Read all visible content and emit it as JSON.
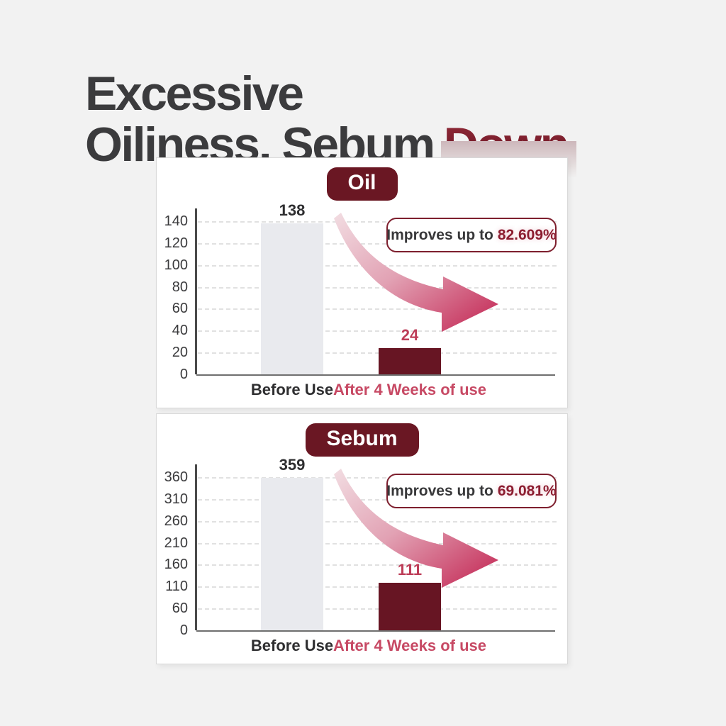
{
  "page": {
    "background": "#f2f2f2"
  },
  "title": {
    "line1": "Excessive",
    "line2_prefix": "Oiliness, Sebum",
    "line2_highlight": "Down"
  },
  "colors": {
    "page_bg": "#f2f2f2",
    "title_text": "#3b3b3d",
    "down_text": "#7a1f2b",
    "badge_bg": "#6a1723",
    "badge_text": "#ffffff",
    "bar_before": "#e9eaee",
    "bar_after": "#671523",
    "value_label_before": "#2e2e30",
    "value_label_after": "#bd3d58",
    "category_before": "#2e2e30",
    "category_after": "#c74964",
    "annotation_border": "#7e1f2e",
    "annotation_prefix_text": "#38383a",
    "annotation_value_text": "#8c1d30",
    "arrow_start": "#f2dde2",
    "arrow_mid": "#e2a2b4",
    "arrow_end": "#c22250",
    "gridline": "#e1e1e1"
  },
  "chart_data": [
    {
      "type": "bar",
      "title": "Oil",
      "categories": [
        "Before Use",
        "After 4 Weeks of use"
      ],
      "values": [
        138,
        24
      ],
      "value_labels": [
        "138",
        "24"
      ],
      "yticks": [
        0,
        20,
        40,
        60,
        80,
        100,
        120,
        140
      ],
      "ylim": [
        0,
        140
      ],
      "grid": "dashed-horizontal",
      "legend": "none",
      "annotation": {
        "prefix": "Improves up to",
        "value": "82.609%"
      },
      "bar_colors": [
        "#e9eaee",
        "#671523"
      ]
    },
    {
      "type": "bar",
      "title": "Sebum",
      "categories": [
        "Before Use",
        "After 4 Weeks of use"
      ],
      "values": [
        359,
        111
      ],
      "value_labels": [
        "359",
        "111"
      ],
      "yticks": [
        0,
        60,
        110,
        160,
        210,
        260,
        310,
        360
      ],
      "ylim": [
        0,
        360
      ],
      "grid": "dashed-horizontal",
      "legend": "none",
      "annotation": {
        "prefix": "Improves up to",
        "value": "69.081%"
      },
      "bar_colors": [
        "#e9eaee",
        "#671523"
      ]
    }
  ]
}
